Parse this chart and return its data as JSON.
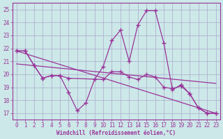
{
  "background_color": "#cce8e8",
  "grid_color": "#aaaacc",
  "line_color": "#993399",
  "marker": "+",
  "xlabel": "Windchill (Refroidissement éolien,°C)",
  "xlim": [
    -0.5,
    23.5
  ],
  "ylim": [
    16.5,
    25.5
  ],
  "yticks": [
    17,
    18,
    19,
    20,
    21,
    22,
    23,
    24,
    25
  ],
  "xticks": [
    0,
    1,
    2,
    3,
    4,
    5,
    6,
    7,
    8,
    9,
    10,
    11,
    12,
    13,
    14,
    15,
    16,
    17,
    18,
    19,
    20,
    21,
    22,
    23
  ],
  "curve1": {
    "x": [
      0,
      1,
      2,
      3,
      4,
      5,
      6,
      7,
      8,
      9,
      10,
      11,
      12,
      13,
      14,
      15,
      16,
      17,
      18,
      19,
      20,
      21,
      22,
      23
    ],
    "y": [
      21.8,
      21.8,
      20.7,
      19.7,
      19.9,
      19.9,
      18.6,
      17.2,
      17.8,
      19.6,
      20.6,
      22.6,
      23.4,
      21.0,
      23.8,
      24.9,
      24.9,
      22.4,
      18.8,
      19.2,
      18.5,
      17.4,
      17.0,
      17.0
    ]
  },
  "curve2": {
    "x": [
      0,
      1,
      2,
      3,
      4,
      5,
      6,
      10,
      11,
      12,
      13,
      14,
      15,
      16,
      17,
      18,
      19,
      20,
      21,
      22,
      23
    ],
    "y": [
      21.8,
      21.8,
      20.7,
      19.7,
      19.9,
      19.9,
      19.7,
      19.6,
      20.2,
      20.2,
      19.8,
      19.6,
      20.0,
      19.8,
      19.0,
      18.9,
      19.1,
      18.5,
      17.4,
      17.0,
      17.0
    ]
  },
  "line3": {
    "x": [
      0,
      23
    ],
    "y": [
      21.8,
      17.0
    ]
  },
  "line4": {
    "x": [
      0,
      23
    ],
    "y": [
      20.8,
      19.3
    ]
  }
}
